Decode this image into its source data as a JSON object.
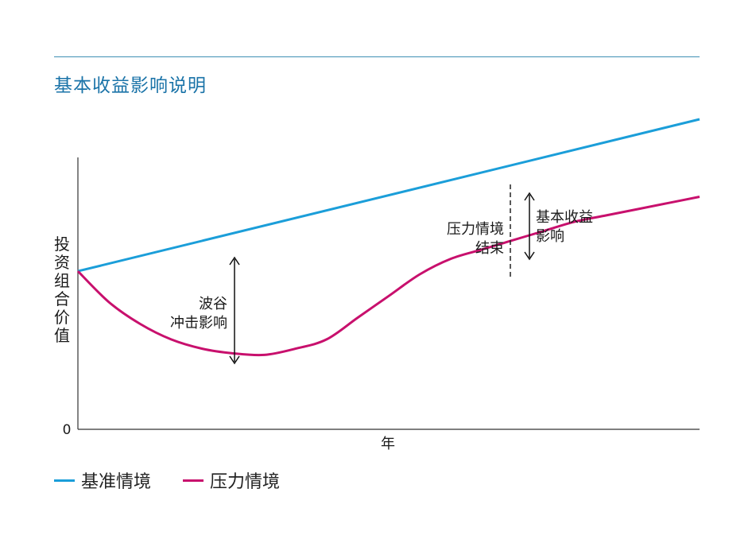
{
  "title": "基本收益影响说明",
  "colors": {
    "baseline": "#1b9ed9",
    "stress": "#c8106d",
    "rule": "#3f8fb5",
    "axis": "#333333"
  },
  "chart_data": {
    "type": "line",
    "ylabel": "投资组合价值",
    "xlabel": "年",
    "y_tick_zero": "0",
    "x": [
      0,
      25,
      50,
      75,
      100
    ],
    "xlim": [
      0,
      100
    ],
    "ylim": [
      0,
      100
    ],
    "series": [
      {
        "name": "基准情境",
        "x": [
          0,
          100
        ],
        "values": [
          51,
          100
        ]
      },
      {
        "name": "压力情境",
        "x": [
          0,
          5,
          10,
          15,
          20,
          25,
          30,
          35,
          40,
          45,
          50,
          55,
          60,
          65,
          70,
          75,
          80,
          85,
          90,
          95,
          100
        ],
        "values": [
          51,
          41,
          34,
          29,
          26,
          24.5,
          24,
          26,
          29,
          36,
          43,
          50,
          55,
          58,
          61,
          64,
          67,
          69,
          71,
          73,
          75
        ]
      }
    ],
    "annotations": [
      {
        "id": "trough",
        "lines": [
          "波谷",
          "冲击影响"
        ]
      },
      {
        "id": "stress_end",
        "lines": [
          "压力情境",
          "结束"
        ]
      },
      {
        "id": "base_return",
        "lines": [
          "基本收益",
          "影响"
        ]
      }
    ]
  },
  "legend": [
    {
      "label": "基准情境",
      "color": "#1b9ed9"
    },
    {
      "label": "压力情境",
      "color": "#c8106d"
    }
  ]
}
